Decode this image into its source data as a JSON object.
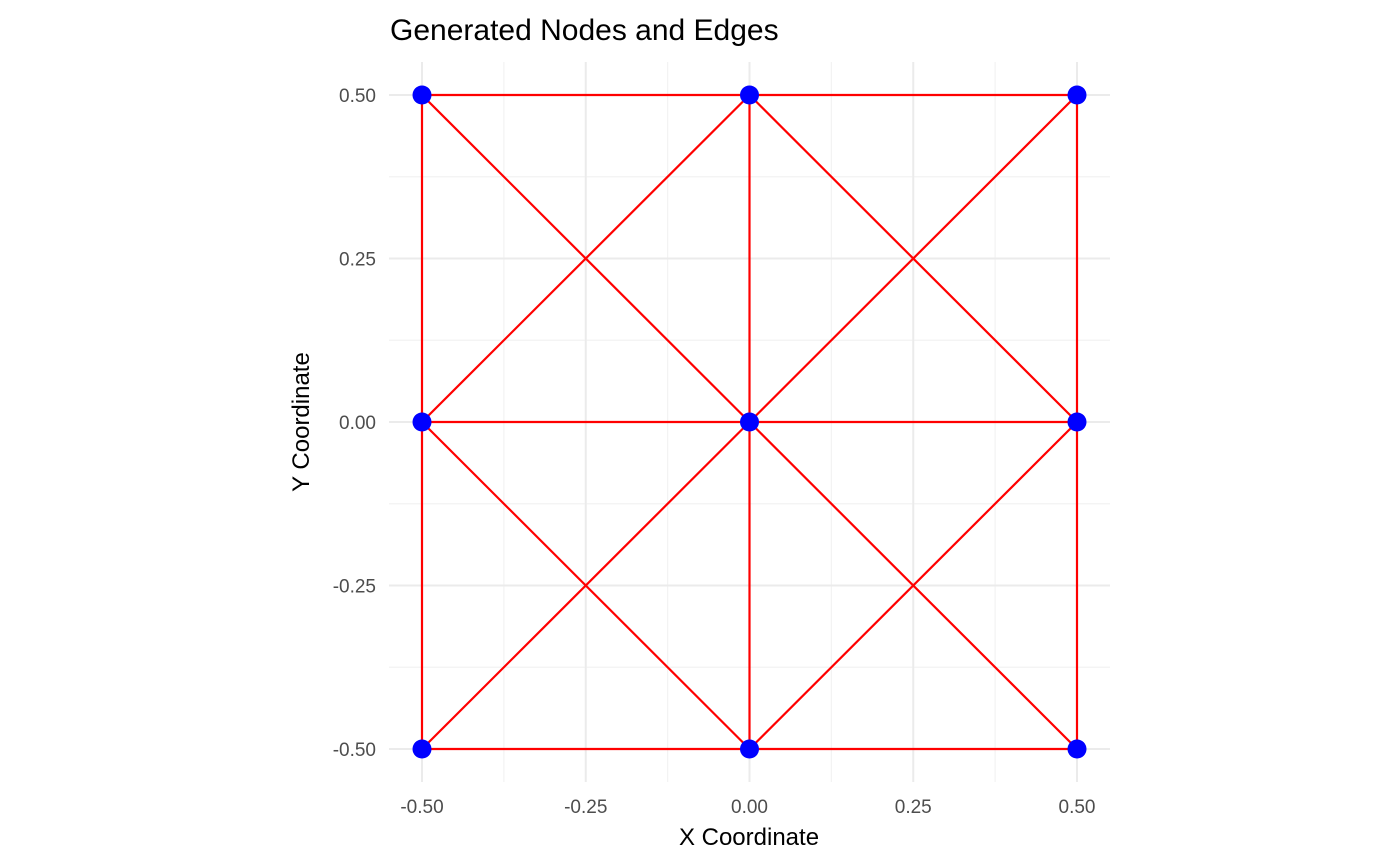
{
  "chart_data": {
    "type": "network",
    "title": "Generated Nodes and Edges",
    "xlabel": "X Coordinate",
    "ylabel": "Y Coordinate",
    "xlim": [
      -0.55,
      0.55
    ],
    "ylim": [
      -0.55,
      0.55
    ],
    "x_ticks": [
      -0.5,
      -0.25,
      0.0,
      0.25,
      0.5
    ],
    "x_tick_labels": [
      "-0.50",
      "-0.25",
      "0.00",
      "0.25",
      "0.50"
    ],
    "y_ticks": [
      -0.5,
      -0.25,
      0.0,
      0.25,
      0.5
    ],
    "y_tick_labels": [
      "-0.50",
      "-0.25",
      "0.00",
      "0.25",
      "0.50"
    ],
    "minor_ticks": [
      -0.375,
      -0.125,
      0.125,
      0.375
    ],
    "grid": true,
    "node_color": "#0000ff",
    "edge_color": "#ff0000",
    "nodes": [
      {
        "x": -0.5,
        "y": 0.5
      },
      {
        "x": 0.0,
        "y": 0.5
      },
      {
        "x": 0.5,
        "y": 0.5
      },
      {
        "x": -0.5,
        "y": 0.0
      },
      {
        "x": 0.0,
        "y": 0.0
      },
      {
        "x": 0.5,
        "y": 0.0
      },
      {
        "x": -0.5,
        "y": -0.5
      },
      {
        "x": 0.0,
        "y": -0.5
      },
      {
        "x": 0.5,
        "y": -0.5
      }
    ],
    "edges": [
      {
        "from": [
          -0.5,
          0.5
        ],
        "to": [
          0.0,
          0.5
        ]
      },
      {
        "from": [
          0.0,
          0.5
        ],
        "to": [
          0.5,
          0.5
        ]
      },
      {
        "from": [
          -0.5,
          0.0
        ],
        "to": [
          0.0,
          0.0
        ]
      },
      {
        "from": [
          0.0,
          0.0
        ],
        "to": [
          0.5,
          0.0
        ]
      },
      {
        "from": [
          -0.5,
          -0.5
        ],
        "to": [
          0.0,
          -0.5
        ]
      },
      {
        "from": [
          0.0,
          -0.5
        ],
        "to": [
          0.5,
          -0.5
        ]
      },
      {
        "from": [
          -0.5,
          0.5
        ],
        "to": [
          -0.5,
          0.0
        ]
      },
      {
        "from": [
          -0.5,
          0.0
        ],
        "to": [
          -0.5,
          -0.5
        ]
      },
      {
        "from": [
          0.0,
          0.5
        ],
        "to": [
          0.0,
          0.0
        ]
      },
      {
        "from": [
          0.0,
          0.0
        ],
        "to": [
          0.0,
          -0.5
        ]
      },
      {
        "from": [
          0.5,
          0.5
        ],
        "to": [
          0.5,
          0.0
        ]
      },
      {
        "from": [
          0.5,
          0.0
        ],
        "to": [
          0.5,
          -0.5
        ]
      },
      {
        "from": [
          -0.5,
          0.5
        ],
        "to": [
          0.0,
          0.0
        ]
      },
      {
        "from": [
          0.0,
          0.0
        ],
        "to": [
          0.5,
          -0.5
        ]
      },
      {
        "from": [
          0.0,
          0.5
        ],
        "to": [
          0.5,
          0.0
        ]
      },
      {
        "from": [
          -0.5,
          0.0
        ],
        "to": [
          0.0,
          -0.5
        ]
      },
      {
        "from": [
          -0.5,
          -0.5
        ],
        "to": [
          0.0,
          0.0
        ]
      },
      {
        "from": [
          0.0,
          0.0
        ],
        "to": [
          0.5,
          0.5
        ]
      },
      {
        "from": [
          -0.5,
          0.0
        ],
        "to": [
          0.0,
          0.5
        ]
      },
      {
        "from": [
          0.0,
          -0.5
        ],
        "to": [
          0.5,
          0.0
        ]
      }
    ]
  }
}
